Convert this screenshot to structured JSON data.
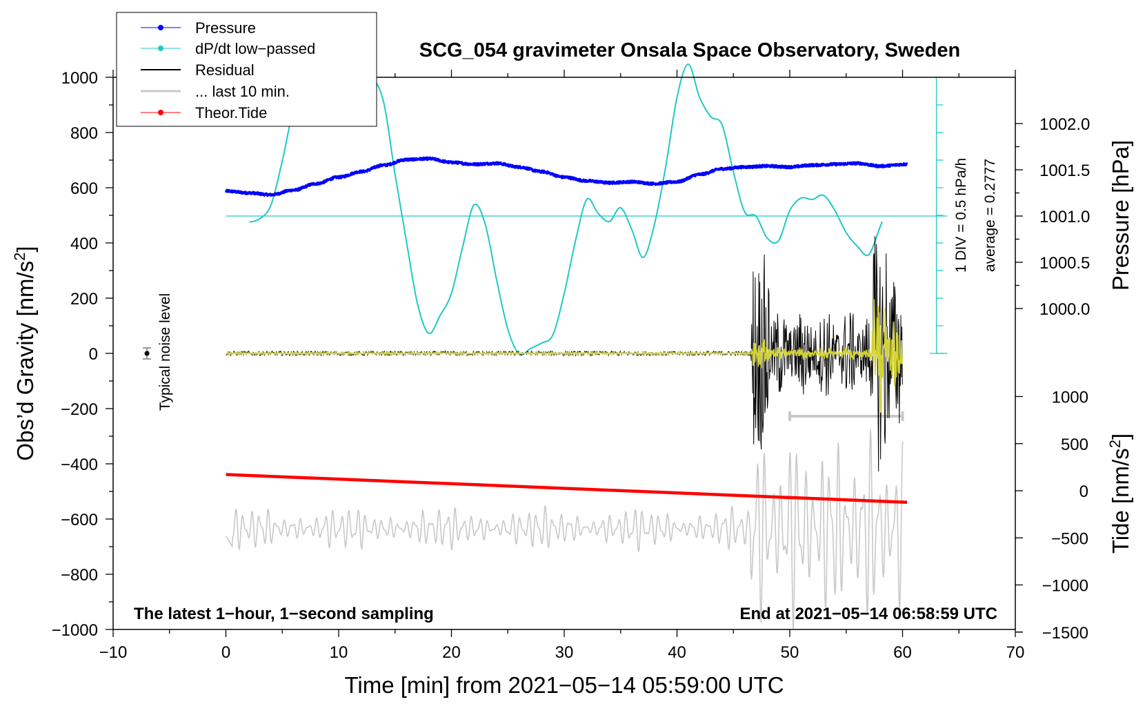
{
  "chart_data": {
    "type": "line",
    "title": "SCG_054 gravimeter Onsala Space Observatory, Sweden",
    "xlabel": "Time [min] from 2021−05−14 05:59:00 UTC",
    "ylabel_left": "Obs’d Gravity [nm/s²]",
    "ylabel_left_main": "Obs’d Gravity [nm/s",
    "ylabel_right_pressure": "Pressure [hPa]",
    "ylabel_right_tide_main": "Tide [nm/s",
    "unit_sup": "2",
    "unit_close": "]",
    "xlim": [
      -10,
      70
    ],
    "ylim_left": [
      -1000,
      1000
    ],
    "x_ticks": [
      "−10",
      "0",
      "10",
      "20",
      "30",
      "40",
      "50",
      "60",
      "70"
    ],
    "y_ticks_left": [
      "1000",
      "800",
      "600",
      "400",
      "200",
      "0",
      "−200",
      "−400",
      "−600",
      "−800",
      "−1000"
    ],
    "pressure_ticks": [
      "1002.0",
      "1001.5",
      "1001.0",
      "1000.5",
      "1000.0"
    ],
    "tide_ticks": [
      "1000",
      "500",
      "0",
      "−500",
      "−1000",
      "−1500"
    ],
    "legend": [
      "Pressure",
      "dP/dt low−passed",
      "Residual",
      "... last 10 min.",
      "Theor.Tide"
    ],
    "annotations": {
      "noise": "Typical noise level",
      "div": "1 DIV = 0.5 hPa/h",
      "average": "average = 0.2777",
      "footer_left": "The latest 1−hour, 1−second sampling",
      "footer_right": "End at 2021−05−14 06:58:59 UTC"
    },
    "series": [
      {
        "name": "Pressure",
        "units": "hPa",
        "color": "#0000ff",
        "points": [
          [
            0,
            1001.27
          ],
          [
            2,
            1001.25
          ],
          [
            4,
            1001.23
          ],
          [
            6,
            1001.28
          ],
          [
            8,
            1001.35
          ],
          [
            10,
            1001.42
          ],
          [
            12,
            1001.48
          ],
          [
            14,
            1001.55
          ],
          [
            16,
            1001.61
          ],
          [
            18,
            1001.62
          ],
          [
            20,
            1001.58
          ],
          [
            22,
            1001.56
          ],
          [
            24,
            1001.57
          ],
          [
            26,
            1001.53
          ],
          [
            28,
            1001.48
          ],
          [
            30,
            1001.42
          ],
          [
            32,
            1001.38
          ],
          [
            34,
            1001.36
          ],
          [
            36,
            1001.37
          ],
          [
            38,
            1001.35
          ],
          [
            40,
            1001.37
          ],
          [
            42,
            1001.45
          ],
          [
            44,
            1001.51
          ],
          [
            46,
            1001.53
          ],
          [
            48,
            1001.54
          ],
          [
            50,
            1001.53
          ],
          [
            52,
            1001.55
          ],
          [
            54,
            1001.56
          ],
          [
            56,
            1001.57
          ],
          [
            58,
            1001.54
          ],
          [
            60.4,
            1001.56
          ]
        ]
      },
      {
        "name": "dP/dt low−passed",
        "units": "hPa/h (1 DIV = 0.5 hPa/h, baseline = average)",
        "color": "#1ec8c8",
        "points": [
          [
            2.1,
            -0.22
          ],
          [
            3,
            -0.1
          ],
          [
            4,
            0.4
          ],
          [
            5,
            2.0
          ],
          [
            6,
            3.9
          ],
          [
            7,
            4.85
          ],
          [
            8,
            5.15
          ],
          [
            9,
            5.05
          ],
          [
            10,
            4.82
          ],
          [
            11,
            4.6
          ],
          [
            12,
            4.6
          ],
          [
            13,
            4.95
          ],
          [
            14,
            4.1
          ],
          [
            15,
            1.5
          ],
          [
            16,
            -0.9
          ],
          [
            17,
            -3.2
          ],
          [
            18,
            -4.25
          ],
          [
            19,
            -3.6
          ],
          [
            20,
            -2.8
          ],
          [
            21,
            -1.1
          ],
          [
            22,
            0.4
          ],
          [
            23,
            -0.3
          ],
          [
            24,
            -2.3
          ],
          [
            25,
            -4.1
          ],
          [
            26,
            -5.0
          ],
          [
            27,
            -4.8
          ],
          [
            28,
            -4.6
          ],
          [
            29,
            -4.3
          ],
          [
            30,
            -2.8
          ],
          [
            31,
            -0.9
          ],
          [
            32,
            0.6
          ],
          [
            33,
            0.1
          ],
          [
            34,
            -0.2
          ],
          [
            35,
            0.3
          ],
          [
            36,
            -0.5
          ],
          [
            37,
            -1.5
          ],
          [
            38,
            -0.3
          ],
          [
            39,
            1.8
          ],
          [
            40,
            4.3
          ],
          [
            41,
            5.5
          ],
          [
            42,
            4.3
          ],
          [
            43,
            3.6
          ],
          [
            44,
            3.3
          ],
          [
            45,
            1.6
          ],
          [
            46,
            0.15
          ],
          [
            47,
            0.0
          ],
          [
            48,
            -0.8
          ],
          [
            49,
            -0.9
          ],
          [
            50,
            0.2
          ],
          [
            51,
            0.65
          ],
          [
            52,
            0.6
          ],
          [
            53,
            0.75
          ],
          [
            54,
            0.2
          ],
          [
            55,
            -0.6
          ],
          [
            56,
            -1.1
          ],
          [
            57,
            -1.4
          ],
          [
            58,
            -0.4
          ],
          [
            58.2,
            -0.2
          ]
        ]
      },
      {
        "name": "Residual",
        "units": "nm/s²",
        "color": "#000000",
        "description": "Near zero (±10 nm/s²) until ~46.5 min, then large oscillations; peaks near 47 min (+390/−380) and 57.8 min (+490/−430)"
      },
      {
        "name": "... last 10 min.",
        "units": "nm/s²",
        "color": "#c8c8c8",
        "window": [
          50,
          60
        ]
      },
      {
        "name": "Theor.Tide",
        "units": "nm/s²",
        "color": "#ff0000",
        "points": [
          [
            0,
            172
          ],
          [
            60.4,
            -123
          ]
        ]
      },
      {
        "name": "Tide trace (grey)",
        "units": "nm/s²",
        "color": "#c8c8c8",
        "description": "Oscillating trace around −400 nm/s² (tide axis), amplitude up to ~±1300 after 46.5 min"
      }
    ]
  },
  "colors": {
    "pressure": "#0000ff",
    "dpdt": "#1ec8c8",
    "residual": "#000000",
    "last10": "#c8c8c8",
    "tide": "#ff0000",
    "highlight": "#d2d232"
  }
}
